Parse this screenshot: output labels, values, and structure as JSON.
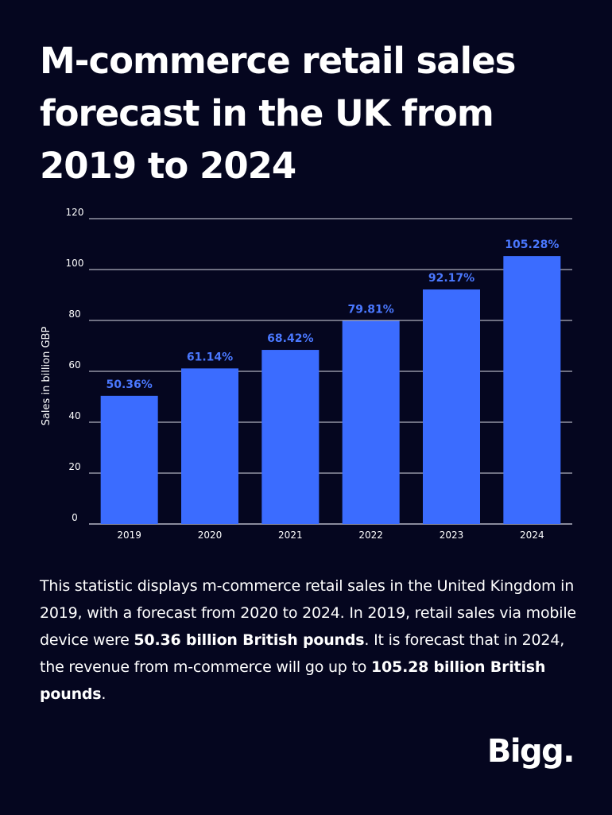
{
  "header": {
    "title": "M-commerce retail sales forecast in the UK from 2019 to 2024"
  },
  "chart_data": {
    "type": "bar",
    "categories": [
      "2019",
      "2020",
      "2021",
      "2022",
      "2023",
      "2024"
    ],
    "values": [
      50.36,
      61.14,
      68.42,
      79.81,
      92.17,
      105.28
    ],
    "data_labels": [
      "50.36%",
      "61.14%",
      "68.42%",
      "79.81%",
      "92.17%",
      "105.28%"
    ],
    "ylabel": "Sales in billion GBP",
    "xlabel": "",
    "ylim": [
      0,
      120
    ],
    "yticks": [
      0,
      20,
      40,
      60,
      80,
      100,
      120
    ],
    "grid": true,
    "bar_color": "#3b6cff",
    "label_color": "#4a78ff",
    "grid_color": "#d9dbe6"
  },
  "description": {
    "intro": "This statistic displays m-commerce retail sales in the United Kingdom in 2019, with a forecast from 2020 to 2024. In 2019, retail sales via mobile device were ",
    "highlight_1": "50.36 billion British pounds",
    "middle": ". It is forecast that in 2024, the revenue from m-commerce will go up to ",
    "highlight_2": "105.28 billion British pounds",
    "end": "."
  },
  "brand": {
    "logo_text": "Bigg."
  }
}
